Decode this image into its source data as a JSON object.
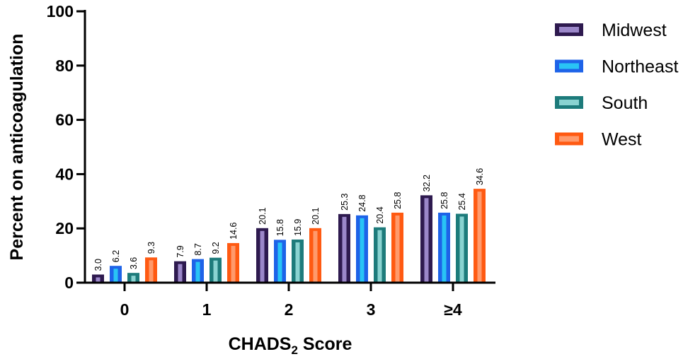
{
  "chart_data": {
    "type": "bar",
    "title": "",
    "xlabel": "CHADS",
    "xlabel_subscript": "2",
    "xlabel_suffix": " Score",
    "ylabel": "Percent on anticoagulation",
    "ylim": [
      0,
      100
    ],
    "yticks": [
      "0",
      "20",
      "40",
      "60",
      "80",
      "100"
    ],
    "categories": [
      "0",
      "1",
      "2",
      "3",
      "≥4"
    ],
    "grid": false,
    "legend_position": "right",
    "series": [
      {
        "name": "Midwest",
        "values": [
          3.0,
          7.9,
          20.1,
          25.3,
          32.2
        ],
        "labels": [
          "3.0",
          "7.9",
          "20.1",
          "25.3",
          "32.2"
        ],
        "color": "#2E1A4F",
        "fill": "#9B87C9"
      },
      {
        "name": "Northeast",
        "values": [
          6.2,
          8.7,
          15.8,
          24.8,
          25.8
        ],
        "labels": [
          "6.2",
          "8.7",
          "15.8",
          "24.8",
          "25.8"
        ],
        "color": "#1E63E8",
        "fill": "#29C4F5"
      },
      {
        "name": "South",
        "values": [
          3.6,
          9.2,
          15.9,
          20.4,
          25.4
        ],
        "labels": [
          "3.6",
          "9.2",
          "15.9",
          "20.4",
          "25.4"
        ],
        "color": "#1D7B7B",
        "fill": "#8AD3D1"
      },
      {
        "name": "West",
        "values": [
          9.3,
          14.6,
          20.1,
          25.8,
          34.6
        ],
        "labels": [
          "9.3",
          "14.6",
          "20.1",
          "25.8",
          "34.6"
        ],
        "color": "#FF5A12",
        "fill": "#FF9A6C"
      }
    ]
  }
}
